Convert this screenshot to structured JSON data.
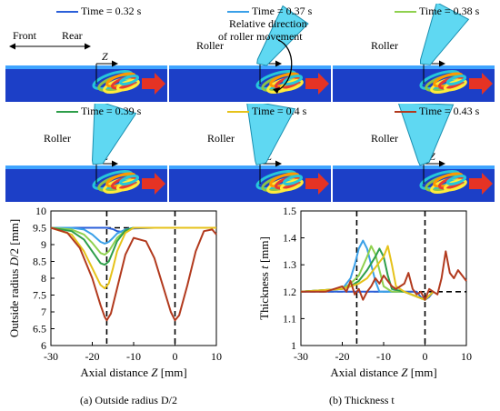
{
  "panels": [
    {
      "time_label": "Time = 0.32 s",
      "color": "#2b5fd9",
      "roller_label": "",
      "roller_angle": null
    },
    {
      "time_label": "Time = 0.37 s",
      "color": "#3aa0e8",
      "roller_label": "Roller",
      "roller_angle": 35
    },
    {
      "time_label": "Time = 0.38 s",
      "color": "#8fd14f",
      "roller_label": "Roller",
      "roller_angle": 28
    },
    {
      "time_label": "Time = 0.39 s",
      "color": "#2e9e4a",
      "roller_label": "Roller",
      "roller_angle": 18
    },
    {
      "time_label": "Time = 0.4 s",
      "color": "#e6c21a",
      "roller_label": "Roller",
      "roller_angle": 10
    },
    {
      "time_label": "Time = 0.43 s",
      "color": "#b23a1e",
      "roller_label": "Roller",
      "roller_angle": 2
    }
  ],
  "annotations": {
    "front": "Front",
    "rear": "Rear",
    "relative_direction": "Relative direction",
    "of_roller_movement": "of roller movement",
    "z_symbol": "Z"
  },
  "chart_data": [
    {
      "type": "line",
      "xlabel_prefix": "Axial distance ",
      "xlabel_var": "Z",
      "xlabel_unit": " [mm]",
      "ylabel_prefix": "Outside radius ",
      "ylabel_var": "D",
      "ylabel_suffix": "/2 [mm]",
      "xlim": [
        -30,
        10
      ],
      "ylim": [
        6,
        10
      ],
      "xticks": [
        -30,
        -20,
        -10,
        0,
        10
      ],
      "yticks": [
        6,
        6.5,
        7,
        7.5,
        8,
        8.5,
        9,
        9.5,
        10
      ],
      "reference_lines": {
        "vertical": [
          -16.5,
          0
        ],
        "horizontal": [
          9.5
        ]
      },
      "caption": "(a) Outside radius D/2",
      "series": [
        {
          "color": "#2b5fd9",
          "x": [
            -30,
            -25,
            -22,
            -20,
            -18,
            -16.5,
            -15,
            -14,
            -13,
            -12,
            -10,
            -5,
            0,
            5,
            10
          ],
          "y": [
            9.5,
            9.5,
            9.5,
            9.5,
            9.5,
            9.5,
            9.46,
            9.4,
            9.38,
            9.42,
            9.48,
            9.5,
            9.5,
            9.5,
            9.5
          ]
        },
        {
          "color": "#3aa0e8",
          "x": [
            -30,
            -25,
            -22,
            -20,
            -18,
            -17,
            -16,
            -15,
            -14,
            -12,
            -10,
            -5,
            0,
            5,
            10
          ],
          "y": [
            9.5,
            9.5,
            9.45,
            9.3,
            9.08,
            9.03,
            9.08,
            9.2,
            9.33,
            9.45,
            9.5,
            9.5,
            9.5,
            9.5,
            9.5
          ]
        },
        {
          "color": "#8fd14f",
          "x": [
            -30,
            -25,
            -22,
            -20,
            -18,
            -17,
            -16,
            -15,
            -14,
            -12,
            -10,
            -5,
            0,
            5,
            10
          ],
          "y": [
            9.5,
            9.45,
            9.3,
            9.05,
            8.75,
            8.7,
            8.8,
            9.0,
            9.2,
            9.42,
            9.5,
            9.5,
            9.5,
            9.5,
            9.5
          ]
        },
        {
          "color": "#2e9e4a",
          "x": [
            -30,
            -25,
            -22,
            -20,
            -18,
            -17,
            -16,
            -15,
            -14,
            -12,
            -10,
            -5,
            0,
            5,
            10
          ],
          "y": [
            9.5,
            9.4,
            9.15,
            8.8,
            8.45,
            8.4,
            8.5,
            8.8,
            9.1,
            9.42,
            9.5,
            9.5,
            9.5,
            9.5,
            9.5
          ]
        },
        {
          "color": "#e6c21a",
          "x": [
            -30,
            -25,
            -22,
            -20,
            -18,
            -17,
            -16,
            -15,
            -14,
            -12,
            -10,
            -5,
            0,
            5,
            10
          ],
          "y": [
            9.5,
            9.3,
            8.8,
            8.3,
            7.8,
            7.7,
            7.85,
            8.3,
            8.8,
            9.35,
            9.5,
            9.5,
            9.5,
            9.5,
            9.5
          ]
        },
        {
          "color": "#b23a1e",
          "x": [
            -30,
            -26,
            -23,
            -20,
            -18,
            -17,
            -16.5,
            -15.5,
            -14,
            -12,
            -10,
            -7,
            -5,
            -3,
            -1,
            0,
            1,
            3,
            5,
            7,
            9,
            10
          ],
          "y": [
            9.5,
            9.35,
            8.9,
            8.0,
            7.2,
            6.85,
            6.75,
            6.95,
            7.7,
            8.7,
            9.2,
            9.1,
            8.6,
            7.8,
            7.0,
            6.75,
            6.9,
            7.8,
            8.8,
            9.4,
            9.45,
            9.3
          ]
        }
      ]
    },
    {
      "type": "line",
      "xlabel_prefix": "Axial distance ",
      "xlabel_var": "Z",
      "xlabel_unit": " [mm]",
      "ylabel_prefix": "Thickness ",
      "ylabel_var": "t",
      "ylabel_suffix": " [mm]",
      "xlim": [
        -30,
        10
      ],
      "ylim": [
        1,
        1.5
      ],
      "xticks": [
        -30,
        -20,
        -10,
        0,
        10
      ],
      "yticks": [
        1,
        1.1,
        1.2,
        1.3,
        1.4,
        1.5
      ],
      "reference_lines": {
        "vertical": [
          -16.5,
          0
        ],
        "horizontal": [
          1.2
        ]
      },
      "caption": "(b) Thickness t",
      "series": [
        {
          "color": "#2b5fd9",
          "x": [
            -30,
            -20,
            -16,
            -14,
            -12,
            -10,
            -8,
            -5,
            -2,
            -1,
            0,
            1,
            2
          ],
          "y": [
            1.2,
            1.2,
            1.2,
            1.2,
            1.2,
            1.2,
            1.2,
            1.2,
            1.2,
            1.18,
            1.17,
            1.18,
            1.2
          ]
        },
        {
          "color": "#3aa0e8",
          "x": [
            -30,
            -20,
            -18,
            -17,
            -16,
            -15,
            -14,
            -13,
            -12,
            -11,
            -10,
            -5,
            0,
            2
          ],
          "y": [
            1.2,
            1.21,
            1.25,
            1.3,
            1.36,
            1.39,
            1.36,
            1.3,
            1.24,
            1.2,
            1.2,
            1.2,
            1.17,
            1.2
          ]
        },
        {
          "color": "#8fd14f",
          "x": [
            -30,
            -20,
            -18,
            -16,
            -14,
            -13,
            -12,
            -11,
            -10,
            -8,
            -5,
            0,
            2
          ],
          "y": [
            1.2,
            1.21,
            1.23,
            1.26,
            1.33,
            1.37,
            1.34,
            1.28,
            1.22,
            1.2,
            1.2,
            1.17,
            1.2
          ]
        },
        {
          "color": "#2e9e4a",
          "x": [
            -30,
            -20,
            -18,
            -16,
            -14,
            -12,
            -11,
            -10,
            -9,
            -8,
            -5,
            0,
            2
          ],
          "y": [
            1.2,
            1.21,
            1.22,
            1.24,
            1.28,
            1.33,
            1.36,
            1.33,
            1.26,
            1.21,
            1.2,
            1.17,
            1.2
          ]
        },
        {
          "color": "#e6c21a",
          "x": [
            -30,
            -20,
            -18,
            -16,
            -14,
            -12,
            -10,
            -9,
            -8,
            -7,
            -5,
            0,
            2
          ],
          "y": [
            1.2,
            1.21,
            1.22,
            1.23,
            1.25,
            1.29,
            1.33,
            1.37,
            1.3,
            1.22,
            1.2,
            1.17,
            1.2
          ]
        },
        {
          "color": "#b23a1e",
          "x": [
            -30,
            -24,
            -20,
            -19,
            -18,
            -17,
            -16,
            -15,
            -14,
            -13,
            -12,
            -11,
            -10,
            -9,
            -8,
            -7,
            -6,
            -5,
            -4,
            -3,
            -2,
            -1,
            0,
            1,
            2,
            3,
            4,
            5,
            6,
            7,
            8,
            9,
            10
          ],
          "y": [
            1.2,
            1.2,
            1.22,
            1.2,
            1.24,
            1.19,
            1.21,
            1.17,
            1.2,
            1.22,
            1.25,
            1.23,
            1.26,
            1.24,
            1.22,
            1.21,
            1.22,
            1.23,
            1.27,
            1.21,
            1.19,
            1.2,
            1.17,
            1.21,
            1.2,
            1.19,
            1.25,
            1.35,
            1.27,
            1.25,
            1.28,
            1.26,
            1.24
          ]
        }
      ]
    }
  ]
}
